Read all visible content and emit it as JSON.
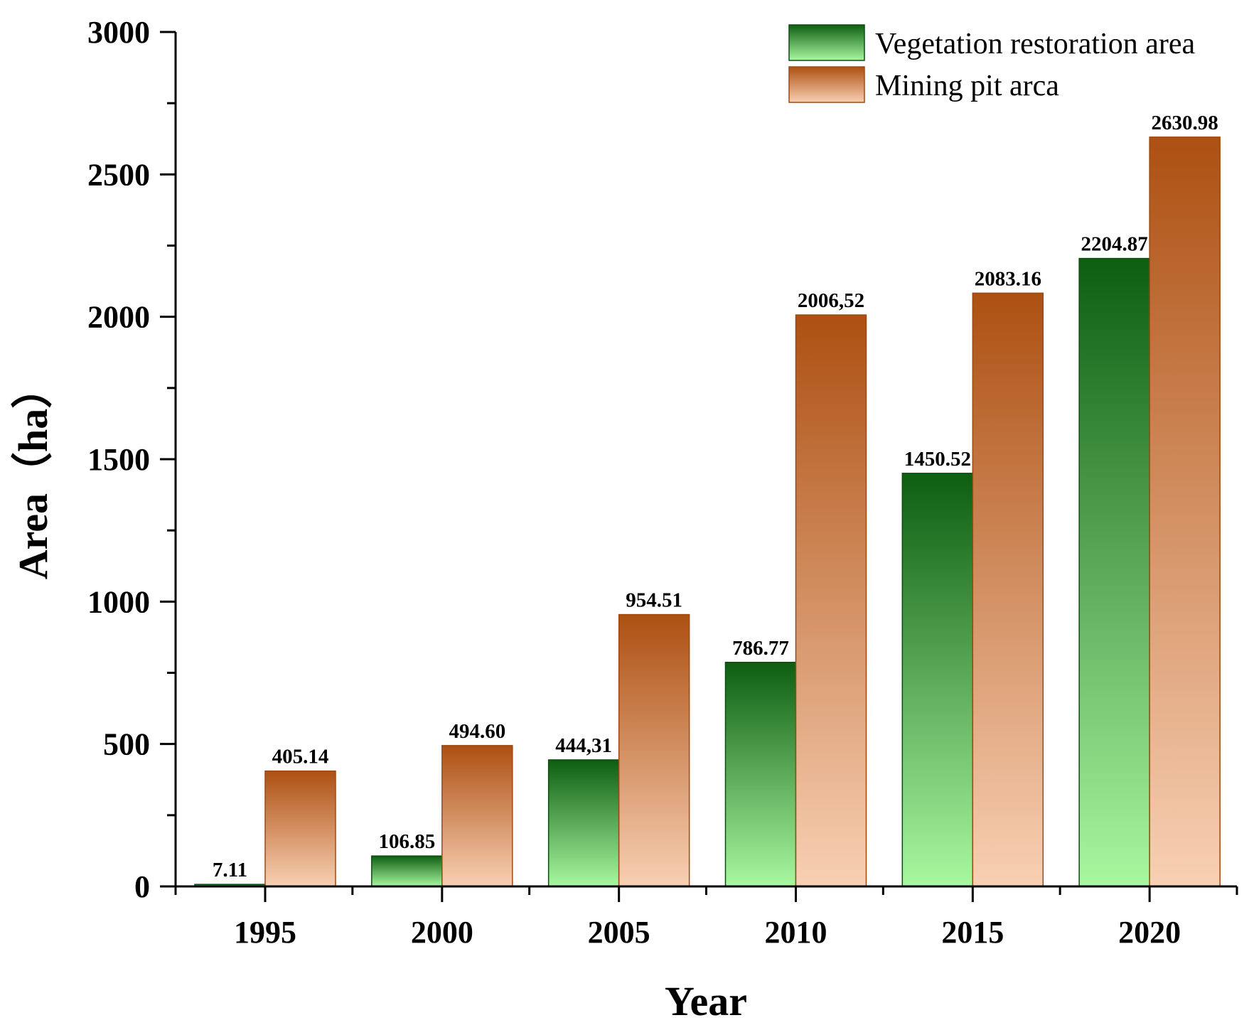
{
  "chart_data": {
    "type": "bar",
    "title": "",
    "xlabel": "Year",
    "ylabel": "Area（ha）",
    "categories": [
      "1995",
      "2000",
      "2005",
      "2010",
      "2015",
      "2020"
    ],
    "ylim": [
      0,
      3000
    ],
    "yticks": [
      0,
      500,
      1000,
      1500,
      2000,
      2500,
      3000
    ],
    "legend_position": "top-right",
    "series": [
      {
        "name": "Vegetation restoration area",
        "values": [
          7.11,
          106.85,
          444.31,
          786.77,
          1450.52,
          2204.87
        ],
        "labels": [
          "7.11",
          "106.85",
          "444,31",
          "786.77",
          "1450.52",
          "2204.87"
        ],
        "color_top": "#0e5e12",
        "color_bottom": "#a8f8a0",
        "stroke": "#0b4d10"
      },
      {
        "name": "Mining pit arca",
        "values": [
          405.14,
          494.6,
          954.51,
          2006.52,
          2083.16,
          2630.98
        ],
        "labels": [
          "405.14",
          "494.60",
          "954.51",
          "2006,52",
          "2083.16",
          "2630.98"
        ],
        "color_top": "#ad5012",
        "color_bottom": "#f8d0b3",
        "stroke": "#9c4a14"
      }
    ]
  }
}
